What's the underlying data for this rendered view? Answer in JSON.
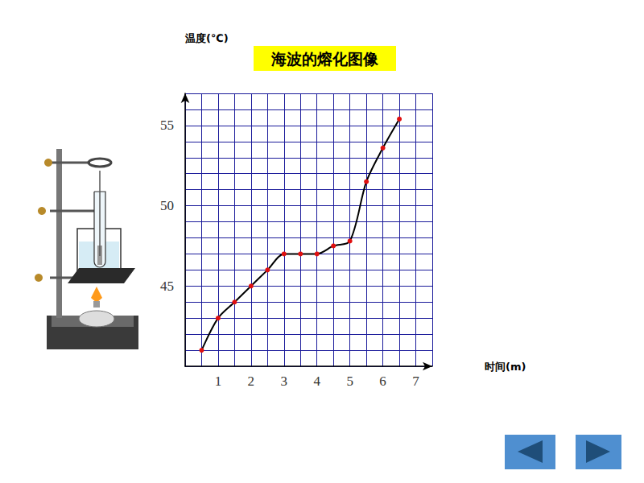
{
  "chart_data": {
    "type": "line",
    "title": "海波的熔化图像",
    "x_label": "时间(m)",
    "y_label": "温度(℃)",
    "x": [
      0.5,
      1,
      1.5,
      2,
      2.5,
      3,
      3.5,
      4,
      4.5,
      5,
      5.5,
      6,
      6.5
    ],
    "values": [
      41,
      43,
      44,
      45,
      46,
      47,
      47,
      47,
      47.5,
      47.8,
      51.5,
      53.6,
      55.4
    ],
    "color": "#000000",
    "marker": "circle",
    "xlim": [
      0,
      7.5
    ],
    "xticks": [
      1,
      2,
      3,
      4,
      5,
      6,
      7
    ],
    "ylim": [
      40,
      57
    ],
    "yticks": [
      45,
      50,
      55
    ],
    "grid": true
  }
}
